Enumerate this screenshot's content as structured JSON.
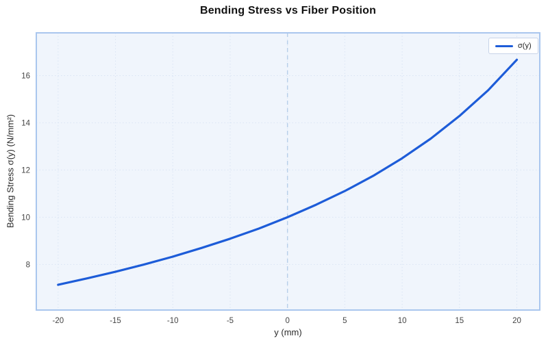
{
  "page": {
    "background": "#ffffff"
  },
  "chart_data": {
    "type": "line",
    "title": "Bending Stress vs Fiber Position",
    "xlabel": "y (mm)",
    "ylabel": "Bending Stress σ(y) (N/mm²)",
    "legend": {
      "position": "top-right",
      "entries": [
        {
          "label": "σ(y)",
          "color": "#1d5cd8"
        }
      ]
    },
    "x": [
      -20,
      -17.5,
      -15,
      -12.5,
      -10,
      -7.5,
      -5,
      -2.5,
      0,
      2.5,
      5,
      7.5,
      10,
      12.5,
      15,
      17.5,
      20
    ],
    "series": [
      {
        "name": "σ(y)",
        "color": "#1d5cd8",
        "values": [
          7.14,
          7.41,
          7.69,
          8.0,
          8.33,
          8.7,
          9.09,
          9.52,
          10.0,
          10.53,
          11.11,
          11.76,
          12.5,
          13.33,
          14.29,
          15.38,
          16.67
        ]
      }
    ],
    "xlim": [
      -21.9,
      22.0
    ],
    "ylim": [
      6.07,
      17.81
    ],
    "xticks": [
      -20,
      -15,
      -10,
      -5,
      0,
      5,
      10,
      15,
      20
    ],
    "yticks": [
      8,
      10,
      12,
      14,
      16
    ],
    "grid": "dotted",
    "vline": {
      "x": 0,
      "style": "dashed"
    },
    "colors": {
      "plot_bg": "#f0f5fc",
      "border": "#a9c6ee",
      "grid": "#d9e4f4",
      "zeroline": "#b7cfe9",
      "title": "#111111",
      "tick": "#444444",
      "axis_label": "#2a2a2a",
      "legend_border": "#c7d3e8",
      "legend_bg": "#ffffff"
    }
  }
}
